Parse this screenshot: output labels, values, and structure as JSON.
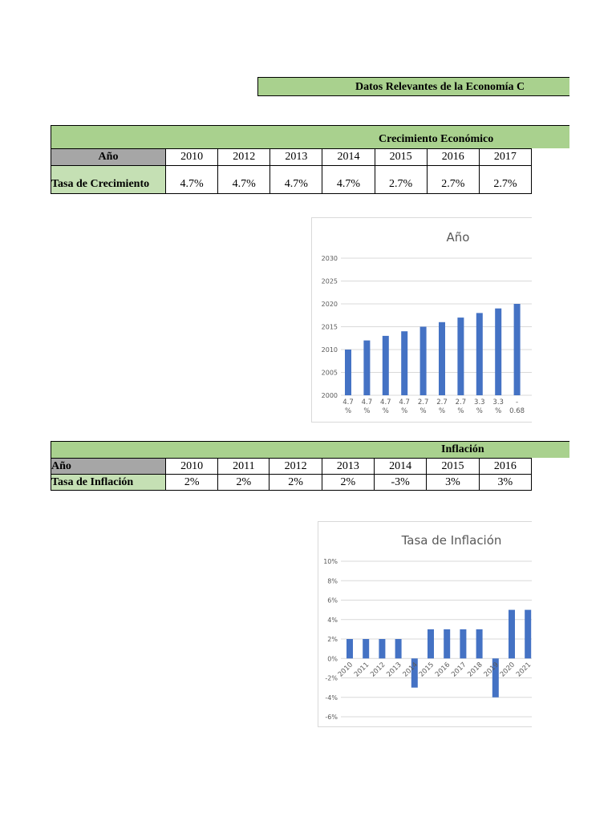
{
  "title": "Datos Relevantes de la Economía C",
  "growth_table": {
    "header": "Crecimiento Económico",
    "row1_label": "Año",
    "years": [
      "2010",
      "2012",
      "2013",
      "2014",
      "2015",
      "2016",
      "2017"
    ],
    "row2_label": "Tasa de Crecimiento",
    "rates": [
      "4.7%",
      "4.7%",
      "4.7%",
      "4.7%",
      "2.7%",
      "2.7%",
      "2.7%"
    ]
  },
  "inflation_table": {
    "header": "Inflación",
    "row1_label": "Año",
    "years": [
      "2010",
      "2011",
      "2012",
      "2013",
      "2014",
      "2015",
      "2016"
    ],
    "row2_label": "Tasa de Inflación",
    "rates": [
      "2%",
      "2%",
      "2%",
      "2%",
      "-3%",
      "3%",
      "3%"
    ]
  },
  "chart_data": [
    {
      "type": "bar",
      "title": "Año",
      "categories": [
        "4.7 %",
        "4.7 %",
        "4.7 %",
        "4.7 %",
        "2.7 %",
        "2.7 %",
        "2.7 %",
        "3.3 %",
        "3.3 %",
        "- 0.68"
      ],
      "values": [
        2010,
        2012,
        2013,
        2014,
        2015,
        2016,
        2017,
        2018,
        2019,
        2020
      ],
      "ylim": [
        2000,
        2030
      ],
      "yticks": [
        "2000",
        "2005",
        "2010",
        "2015",
        "2020",
        "2025",
        "2030"
      ],
      "grid": true,
      "color": "#4472c4"
    },
    {
      "type": "bar",
      "title": "Tasa de Inflación",
      "categories": [
        "2010",
        "2011",
        "2012",
        "2013",
        "2014",
        "2015",
        "2016",
        "2017",
        "2018",
        "2019",
        "2020",
        "2021"
      ],
      "values": [
        2,
        2,
        2,
        2,
        -3,
        3,
        3,
        3,
        3,
        -4,
        5,
        5
      ],
      "ylim": [
        -6,
        10
      ],
      "yticks": [
        "-6%",
        "-4%",
        "-2%",
        "0%",
        "2%",
        "4%",
        "6%",
        "8%",
        "10%"
      ],
      "grid": true,
      "color": "#4472c4"
    }
  ]
}
